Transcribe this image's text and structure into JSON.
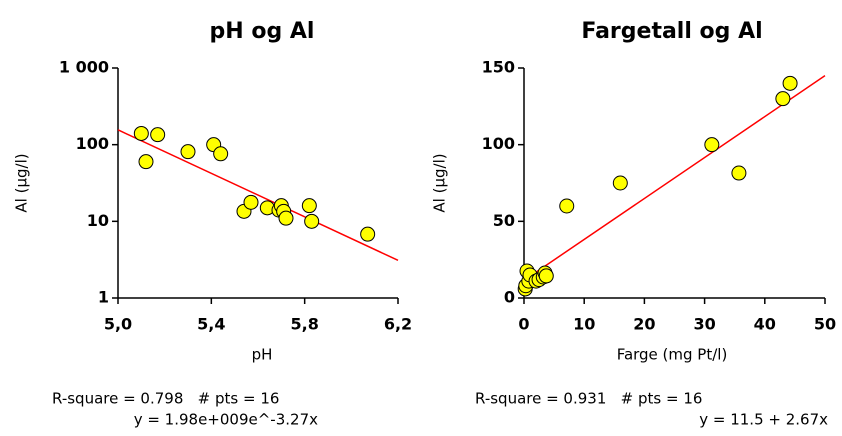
{
  "chart_data": [
    {
      "type": "scatter",
      "title": "pH og Al",
      "x_label": "pH",
      "y_label": "Al (µg/l)",
      "log_y": true,
      "marker_color": "#ffff00",
      "fit_color": "#ff0000",
      "x": [
        5.1,
        5.12,
        5.17,
        5.3,
        5.41,
        5.44,
        5.54,
        5.57,
        5.64,
        5.69,
        5.7,
        5.71,
        5.72,
        5.82,
        5.83,
        6.07
      ],
      "y": [
        140,
        60,
        135,
        81,
        100,
        76,
        13.5,
        17.7,
        15,
        14,
        16,
        13.5,
        11,
        16,
        10,
        6.8
      ],
      "fit": {
        "x": [
          5.0,
          6.2
        ],
        "y": [
          156,
          3.1
        ]
      },
      "xlim": [
        5.0,
        6.2
      ],
      "ylim": [
        1,
        1000
      ],
      "xticks": [
        {
          "value": 5.0,
          "label": "5,0"
        },
        {
          "value": 5.4,
          "label": "5,4"
        },
        {
          "value": 5.8,
          "label": "5,8"
        },
        {
          "value": 6.2,
          "label": "6,2"
        }
      ],
      "yticks": [
        1,
        10,
        100,
        {
          "value": 1000,
          "label": "1 000"
        }
      ],
      "stats": [
        "R-square = 0.798   # pts = 16",
        "y = 1.98e+009e^-3.27x"
      ]
    },
    {
      "type": "scatter",
      "title": "Fargetall og Al",
      "x_label": "Farge (mg Pt/l)",
      "y_label": "Al (µg/l)",
      "log_y": false,
      "marker_color": "#ffff00",
      "fit_color": "#ff0000",
      "x": [
        0.2,
        0.3,
        0.5,
        0.8,
        1,
        2,
        2.5,
        3.2,
        3.5,
        3.7,
        7.1,
        16,
        31.2,
        35.7,
        43,
        44.2
      ],
      "y": [
        5.9,
        8,
        17.6,
        11,
        15,
        11,
        12,
        13.7,
        16.3,
        14.4,
        60,
        75,
        100,
        81.5,
        130,
        140
      ],
      "fit": {
        "x": [
          0,
          50
        ],
        "y": [
          11.5,
          145
        ]
      },
      "xlim": [
        0,
        50
      ],
      "ylim": [
        0,
        150
      ],
      "xticks": [
        0,
        10,
        20,
        30,
        40,
        50
      ],
      "yticks": [
        0,
        50,
        100,
        150
      ],
      "stats": [
        "R-square = 0.931   # pts = 16",
        "y = 11.5 + 2.67x"
      ]
    }
  ]
}
